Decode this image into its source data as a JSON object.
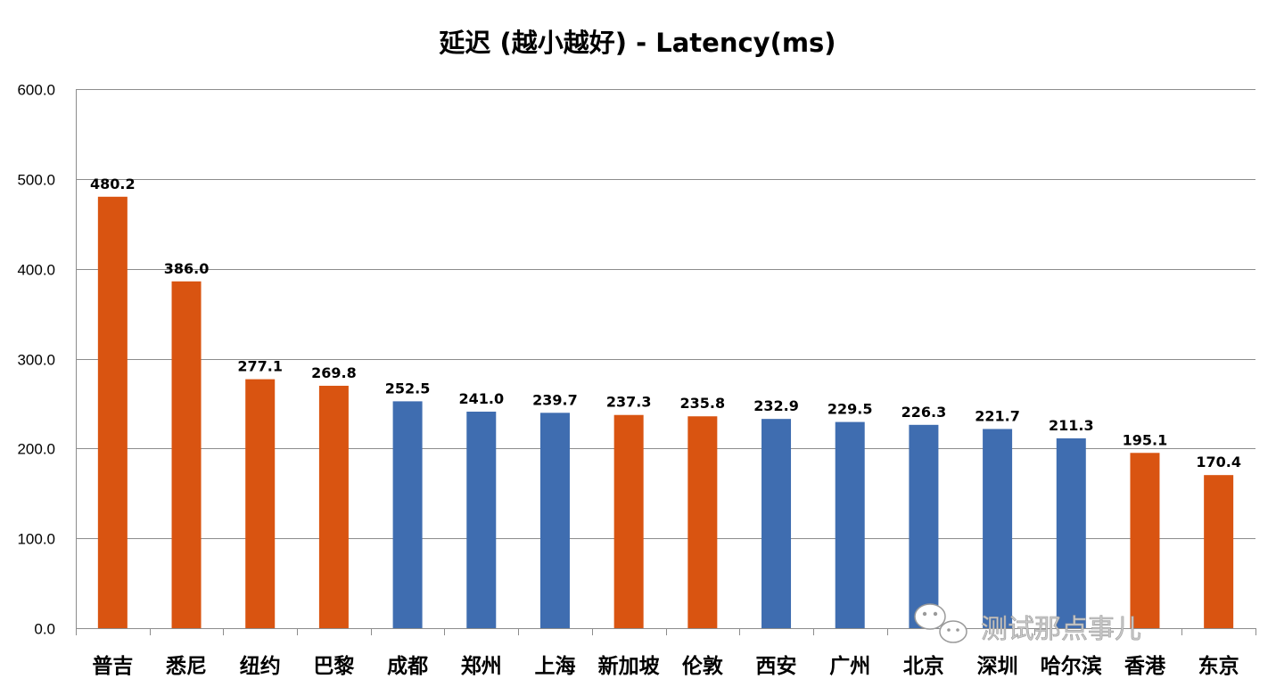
{
  "chart_data": {
    "type": "bar",
    "title": "延迟 (越小越好) -  Latency(ms)",
    "xlabel": "",
    "ylabel": "",
    "ylim": [
      0,
      600
    ],
    "yticks": [
      "0.0",
      "100.0",
      "200.0",
      "300.0",
      "400.0",
      "500.0",
      "600.0"
    ],
    "grid": true,
    "legend": "none",
    "categories": [
      "普吉",
      "悉尼",
      "纽约",
      "巴黎",
      "成都",
      "郑州",
      "上海",
      "新加坡",
      "伦敦",
      "西安",
      "广州",
      "北京",
      "深圳",
      "哈尔滨",
      "香港",
      "东京"
    ],
    "values": [
      480.2,
      386.0,
      277.1,
      269.8,
      252.5,
      241.0,
      239.7,
      237.3,
      235.8,
      232.9,
      229.5,
      226.3,
      221.7,
      211.3,
      195.1,
      170.4
    ],
    "data_labels": [
      "480.2",
      "386.0",
      "277.1",
      "269.8",
      "252.5",
      "241.0",
      "239.7",
      "237.3",
      "235.8",
      "232.9",
      "229.5",
      "226.3",
      "221.7",
      "211.3",
      "195.1",
      "170.4"
    ],
    "bar_colors": [
      "#D95411",
      "#D95411",
      "#D95411",
      "#D95411",
      "#3F6DB0",
      "#3F6DB0",
      "#3F6DB0",
      "#D95411",
      "#D95411",
      "#3F6DB0",
      "#3F6DB0",
      "#3F6DB0",
      "#3F6DB0",
      "#3F6DB0",
      "#D95411",
      "#D95411"
    ]
  },
  "colors": {
    "orange": "#D95411",
    "blue": "#3F6DB0",
    "gridline": "#8C8C8C"
  },
  "watermark": {
    "text": "测试那点事儿",
    "icon": "wechat-icon"
  }
}
